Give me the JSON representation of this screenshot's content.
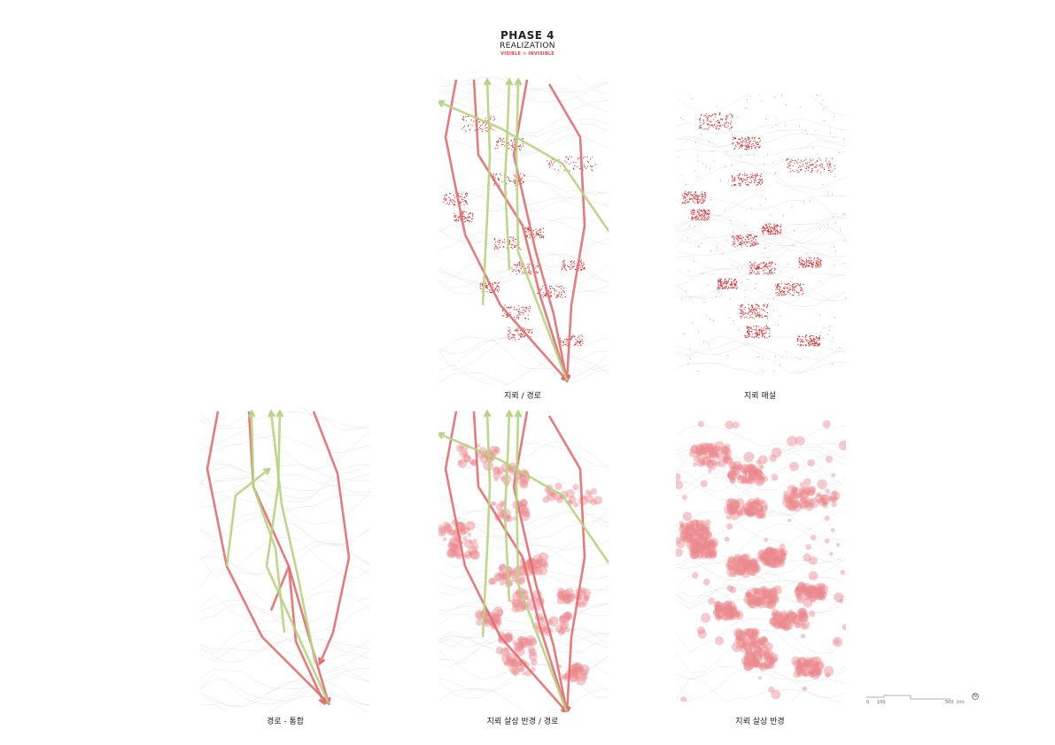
{
  "header": {
    "phase": "PHASE 4",
    "subtitle": "REALIZATION",
    "tagline": "VISIBLE > INVISIBLE"
  },
  "captions": {
    "p1": "지뢰 / 경로",
    "p2": "지뢰 매설",
    "p3": "경로 - 통합",
    "p4": "지뢰 살상 반경 / 경로",
    "p5": "지뢰 살상 반경"
  },
  "scale": {
    "label_0": "0",
    "label_100": "100",
    "label_500": "500",
    "unit": "(m)",
    "north": "N"
  },
  "colors": {
    "route_red": "#e36b6f",
    "route_green": "#b6d37e",
    "mine_red": "#d42a2a",
    "radius_pink": "#ec8a8e",
    "contour": "#d9d9d9"
  }
}
